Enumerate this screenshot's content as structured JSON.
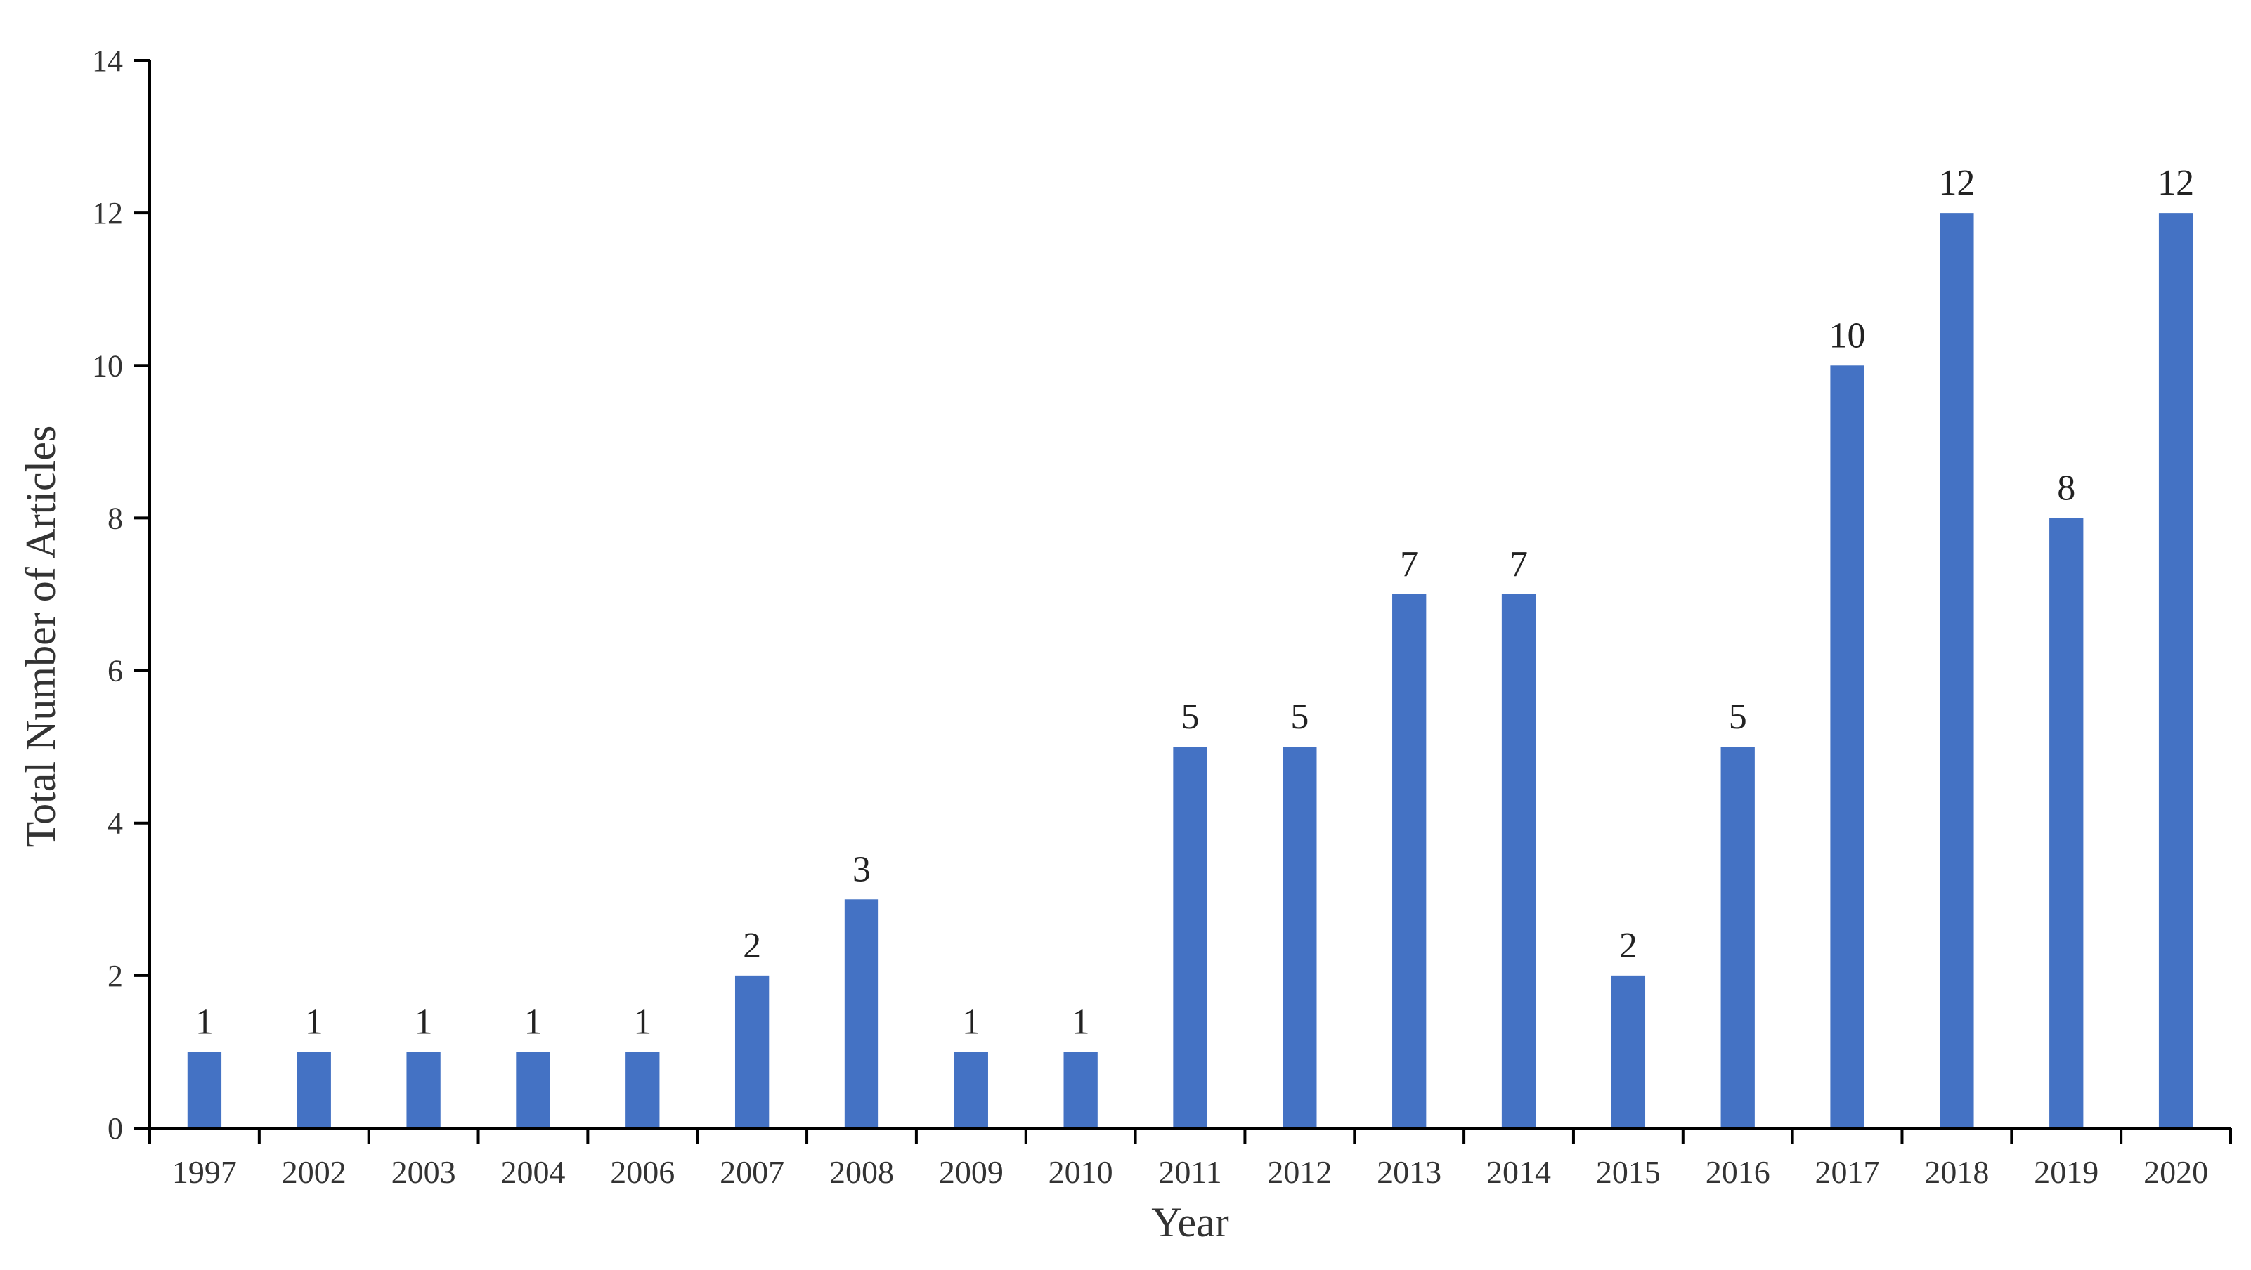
{
  "chart_data": {
    "type": "bar",
    "title": "",
    "xlabel": "Year",
    "ylabel": "Total Number of Articles",
    "categories": [
      "1997",
      "2002",
      "2003",
      "2004",
      "2006",
      "2007",
      "2008",
      "2009",
      "2010",
      "2011",
      "2012",
      "2013",
      "2014",
      "2015",
      "2016",
      "2017",
      "2018",
      "2019",
      "2020"
    ],
    "values": [
      1,
      1,
      1,
      1,
      1,
      2,
      3,
      1,
      1,
      5,
      5,
      7,
      7,
      2,
      5,
      10,
      12,
      8,
      12
    ],
    "data_labels": [
      "1",
      "1",
      "1",
      "1",
      "1",
      "2",
      "3",
      "1",
      "1",
      "5",
      "5",
      "7",
      "7",
      "2",
      "5",
      "10",
      "12",
      "8",
      "12"
    ],
    "ylim": [
      0,
      14
    ],
    "yticks": [
      0,
      2,
      4,
      6,
      8,
      10,
      12,
      14
    ],
    "ytick_labels": [
      "0",
      "2",
      "4",
      "6",
      "8",
      "10",
      "12",
      "14"
    ],
    "grid": false,
    "legend": "none",
    "bar_color": "#4472C4",
    "axis_color": "#000000"
  }
}
